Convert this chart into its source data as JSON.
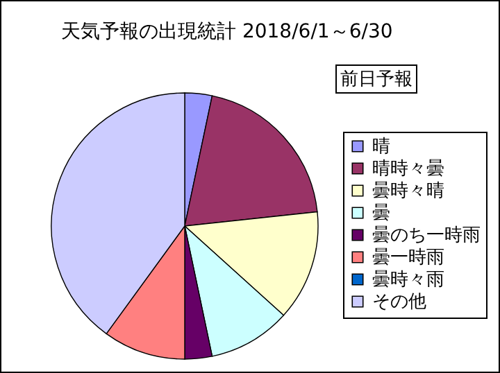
{
  "chart_data": {
    "type": "pie",
    "title": "天気予報の出現統計 2018/6/1～6/30",
    "annotations": [
      "前日予報"
    ],
    "categories": [
      "晴",
      "晴時々曇",
      "曇時々晴",
      "曇",
      "曇のち一時雨",
      "曇一時雨",
      "曇時々雨",
      "その他"
    ],
    "values": [
      3.3,
      20,
      13.4,
      10,
      3.3,
      10,
      0,
      40
    ],
    "colors": [
      "#9999ff",
      "#993366",
      "#ffffcc",
      "#ccffff",
      "#660066",
      "#ff8080",
      "#0066cc",
      "#ccccff"
    ],
    "legend": "right"
  }
}
